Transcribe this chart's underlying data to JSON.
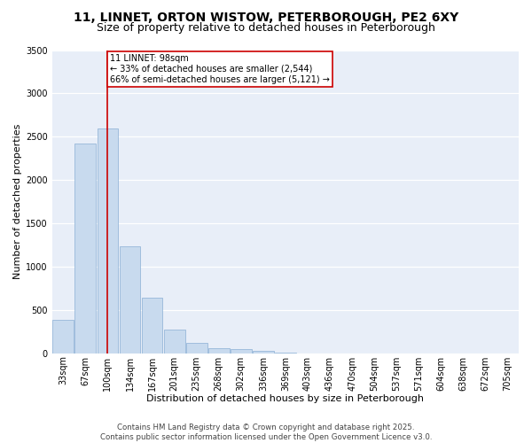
{
  "title1": "11, LINNET, ORTON WISTOW, PETERBOROUGH, PE2 6XY",
  "title2": "Size of property relative to detached houses in Peterborough",
  "xlabel": "Distribution of detached houses by size in Peterborough",
  "ylabel": "Number of detached properties",
  "bar_color": "#c8daee",
  "bar_edge_color": "#8aafd4",
  "background_color": "#e8eef8",
  "grid_color": "#ffffff",
  "annotation_line_color": "#cc0000",
  "annotation_box_color": "#cc0000",
  "annotation_text": "11 LINNET: 98sqm\n← 33% of detached houses are smaller (2,544)\n66% of semi-detached houses are larger (5,121) →",
  "property_bin_index": 2,
  "categories": [
    "33sqm",
    "67sqm",
    "100sqm",
    "134sqm",
    "167sqm",
    "201sqm",
    "235sqm",
    "268sqm",
    "302sqm",
    "336sqm",
    "369sqm",
    "403sqm",
    "436sqm",
    "470sqm",
    "504sqm",
    "537sqm",
    "571sqm",
    "604sqm",
    "638sqm",
    "672sqm",
    "705sqm"
  ],
  "bar_heights": [
    390,
    2420,
    2590,
    1230,
    640,
    270,
    120,
    60,
    50,
    30,
    10,
    0,
    0,
    0,
    0,
    0,
    0,
    0,
    0,
    0,
    0
  ],
  "ylim": [
    0,
    3500
  ],
  "yticks": [
    0,
    500,
    1000,
    1500,
    2000,
    2500,
    3000,
    3500
  ],
  "footer_text": "Contains HM Land Registry data © Crown copyright and database right 2025.\nContains public sector information licensed under the Open Government Licence v3.0.",
  "title_fontsize": 10,
  "subtitle_fontsize": 9,
  "axis_label_fontsize": 8,
  "tick_fontsize": 7
}
